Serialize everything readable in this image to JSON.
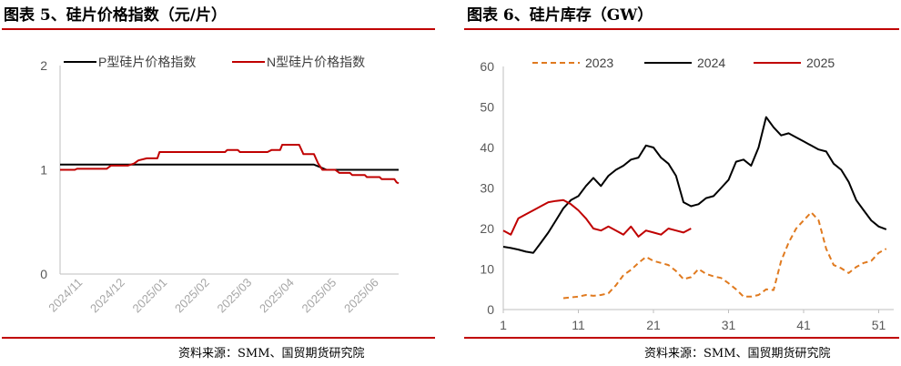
{
  "left_panel": {
    "title": "图表 5、硅片价格指数（元/片）",
    "source": "资料来源：SMM、国贸期货研究院"
  },
  "right_panel": {
    "title": "图表 6、硅片库存（GW）",
    "source": "资料来源：SMM、国贸期货研究院"
  },
  "colors": {
    "rule": "#c00000",
    "p_series": "#000000",
    "n_series": "#c00000",
    "s2023": "#e07a1f",
    "s2024": "#000000",
    "s2025": "#c00000"
  },
  "chart_data": [
    {
      "type": "line",
      "title": "",
      "xlabel": "",
      "ylabel": "",
      "ylim": [
        0,
        2
      ],
      "yticks": [
        "0",
        "1",
        "2"
      ],
      "xtick_labels": [
        "2024/11",
        "2024/12",
        "2025/01",
        "2025/02",
        "2025/03",
        "2025/04",
        "2025/05",
        "2025/06"
      ],
      "xlim": [
        0,
        8
      ],
      "legend_position": "top",
      "grid": false,
      "series": [
        {
          "name": "P型硅片价格指数",
          "points": [
            [
              0,
              1.05
            ],
            [
              6.0,
              1.05
            ],
            [
              6.3,
              1.0
            ],
            [
              8.0,
              1.0
            ]
          ]
        },
        {
          "name": "N型硅片价格指数",
          "points": [
            [
              0,
              1.0
            ],
            [
              0.35,
              1.0
            ],
            [
              0.4,
              1.01
            ],
            [
              1.1,
              1.01
            ],
            [
              1.2,
              1.04
            ],
            [
              1.6,
              1.04
            ],
            [
              1.75,
              1.06
            ],
            [
              1.85,
              1.09
            ],
            [
              2.05,
              1.11
            ],
            [
              2.3,
              1.11
            ],
            [
              2.35,
              1.17
            ],
            [
              3.9,
              1.17
            ],
            [
              3.95,
              1.19
            ],
            [
              4.2,
              1.19
            ],
            [
              4.25,
              1.17
            ],
            [
              4.9,
              1.17
            ],
            [
              5.0,
              1.19
            ],
            [
              5.2,
              1.19
            ],
            [
              5.25,
              1.24
            ],
            [
              5.65,
              1.24
            ],
            [
              5.75,
              1.15
            ],
            [
              6.0,
              1.15
            ],
            [
              6.1,
              1.06
            ],
            [
              6.2,
              1.0
            ],
            [
              6.5,
              1.0
            ],
            [
              6.6,
              0.97
            ],
            [
              6.85,
              0.97
            ],
            [
              6.9,
              0.95
            ],
            [
              7.2,
              0.95
            ],
            [
              7.25,
              0.93
            ],
            [
              7.55,
              0.93
            ],
            [
              7.6,
              0.91
            ],
            [
              7.9,
              0.91
            ],
            [
              7.95,
              0.88
            ],
            [
              8.0,
              0.87
            ]
          ]
        }
      ]
    },
    {
      "type": "line",
      "title": "",
      "xlabel": "",
      "ylabel": "",
      "ylim": [
        0,
        60
      ],
      "yticks": [
        "0",
        "10",
        "20",
        "30",
        "40",
        "50",
        "60"
      ],
      "xlim": [
        1,
        53
      ],
      "xticks": [
        "1",
        "11",
        "21",
        "31",
        "41",
        "51"
      ],
      "legend_position": "top",
      "grid": false,
      "series": [
        {
          "name": "2023",
          "style": "dashed",
          "x": [
            9,
            10,
            11,
            12,
            13,
            14,
            15,
            16,
            17,
            18,
            19,
            20,
            21,
            22,
            23,
            24,
            25,
            26,
            27,
            28,
            29,
            30,
            31,
            32,
            33,
            34,
            35,
            36,
            37,
            38,
            39,
            40,
            41,
            42,
            43,
            44,
            45,
            46,
            47,
            48,
            49,
            50,
            51,
            52
          ],
          "y": [
            2.8,
            3.0,
            3.2,
            3.6,
            3.4,
            3.6,
            4.0,
            6.0,
            8.5,
            9.8,
            11.5,
            13.0,
            12.0,
            11.5,
            11.0,
            9.5,
            7.5,
            8.0,
            10.0,
            8.8,
            8.2,
            7.8,
            6.5,
            5.0,
            3.2,
            3.2,
            3.6,
            5.0,
            4.8,
            12.0,
            16.5,
            20.0,
            22.0,
            24.0,
            22.0,
            15.0,
            11.0,
            10.2,
            9.0,
            10.5,
            11.5,
            12.0,
            14.0,
            15.0
          ]
        },
        {
          "name": "2024",
          "style": "solid",
          "x": [
            1,
            2,
            3,
            4,
            5,
            6,
            7,
            8,
            9,
            10,
            11,
            12,
            13,
            14,
            15,
            16,
            17,
            18,
            19,
            20,
            21,
            22,
            23,
            24,
            25,
            26,
            27,
            28,
            29,
            30,
            31,
            32,
            33,
            34,
            35,
            36,
            37,
            38,
            39,
            40,
            41,
            42,
            43,
            44,
            45,
            46,
            47,
            48,
            49,
            50,
            51,
            52
          ],
          "y": [
            15.5,
            15.2,
            14.8,
            14.3,
            14.0,
            16.5,
            19.0,
            22.0,
            25.0,
            27.0,
            28.0,
            30.5,
            32.5,
            30.5,
            33.0,
            34.5,
            35.5,
            37.0,
            37.5,
            40.5,
            40.0,
            37.5,
            36.0,
            33.0,
            26.5,
            25.5,
            26.0,
            27.5,
            28.0,
            30.0,
            32.0,
            36.5,
            37.0,
            35.5,
            40.0,
            47.5,
            45.0,
            43.0,
            43.5,
            42.5,
            41.5,
            40.5,
            39.5,
            39.0,
            36.0,
            34.5,
            31.5,
            27.0,
            24.5,
            22.0,
            20.5,
            19.8
          ]
        },
        {
          "name": "2025",
          "style": "solid",
          "x": [
            1,
            2,
            3,
            4,
            5,
            6,
            7,
            8,
            9,
            10,
            11,
            12,
            13,
            14,
            15,
            16,
            17,
            18,
            19,
            20,
            21,
            22,
            23,
            24,
            25,
            26
          ],
          "y": [
            19.5,
            18.5,
            22.5,
            23.5,
            24.5,
            25.5,
            26.5,
            26.8,
            27.0,
            26.0,
            24.5,
            22.5,
            20.0,
            19.5,
            20.5,
            19.5,
            18.5,
            20.5,
            18.0,
            19.5,
            19.0,
            18.5,
            20.0,
            19.5,
            19.0,
            20.0
          ]
        }
      ]
    }
  ]
}
